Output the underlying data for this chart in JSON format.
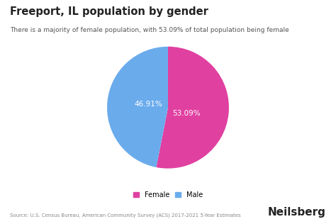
{
  "title": "Freeport, IL population by gender",
  "subtitle": "There is a majority of female population, with 53.09% of total population being female",
  "slices": [
    53.09,
    46.91
  ],
  "labels": [
    "Female",
    "Male"
  ],
  "colors": [
    "#e040a0",
    "#6aabec"
  ],
  "slice_labels": [
    "53.09%",
    "46.91%"
  ],
  "legend_labels": [
    "Female",
    "Male"
  ],
  "source_text": "Source: U.S. Census Bureau, American Community Survey (ACS) 2017-2021 5-Year Estimates",
  "brand_text": "Neilsberg",
  "background_color": "#ffffff",
  "text_color": "#222222",
  "label_color": "#ffffff",
  "startangle": 90
}
